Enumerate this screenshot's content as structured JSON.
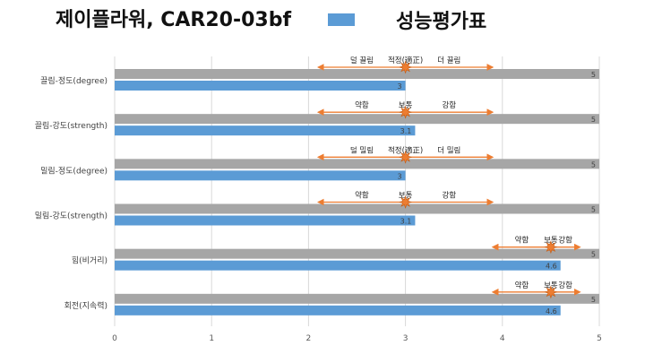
{
  "chart_data": {
    "type": "bar",
    "orientation": "horizontal",
    "title": "제이플라워, CAR20-03bf",
    "categories": [
      "끌림-정도(degree)",
      "끌림-강도(strength)",
      "밀림-정도(degree)",
      "밀림-강도(strength)",
      "힘(비거리)",
      "회전(지속력)"
    ],
    "series": [
      {
        "name": "",
        "color": "#a6a6a6",
        "values": [
          5,
          5,
          5,
          5,
          5,
          5
        ],
        "data_labels": [
          "5",
          "5",
          "5",
          "5",
          "5",
          "5"
        ]
      },
      {
        "name": "성능평가표",
        "color": "#5b9bd5",
        "values": [
          3,
          3.1,
          3,
          3.1,
          4.6,
          4.6
        ],
        "data_labels": [
          "3",
          "3.1",
          "3",
          "3.1",
          "4.6",
          "4.6"
        ]
      }
    ],
    "xlim": [
      0,
      5
    ],
    "x_ticks": [
      "0",
      "1",
      "2",
      "3",
      "4",
      "5"
    ],
    "grid": "vertical",
    "legend": "top-right",
    "annotations": [
      {
        "left": "덜 끌림",
        "center": "적정(適正)",
        "right": "더 끌림",
        "marker": 3,
        "arrow_from": 2.1,
        "arrow_to": 3.9
      },
      {
        "left": "약함",
        "center": "보통",
        "right": "강함",
        "marker": 3,
        "arrow_from": 2.1,
        "arrow_to": 3.9
      },
      {
        "left": "덜 밀림",
        "center": "적정(適正)",
        "right": "더 밀림",
        "marker": 3,
        "arrow_from": 2.1,
        "arrow_to": 3.9
      },
      {
        "left": "약함",
        "center": "보통",
        "right": "강함",
        "marker": 3,
        "arrow_from": 2.1,
        "arrow_to": 3.9
      },
      {
        "left": "약함",
        "center": "보통",
        "right": "강함",
        "marker": 4.5,
        "arrow_from": 3.9,
        "arrow_to": 4.8
      },
      {
        "left": "약함",
        "center": "보통",
        "right": "강함",
        "marker": 4.5,
        "arrow_from": 3.9,
        "arrow_to": 4.8
      }
    ]
  },
  "colors": {
    "arrow": "#ed7d31",
    "marker": "#ed7d31",
    "grid": "#d9d9d9"
  }
}
